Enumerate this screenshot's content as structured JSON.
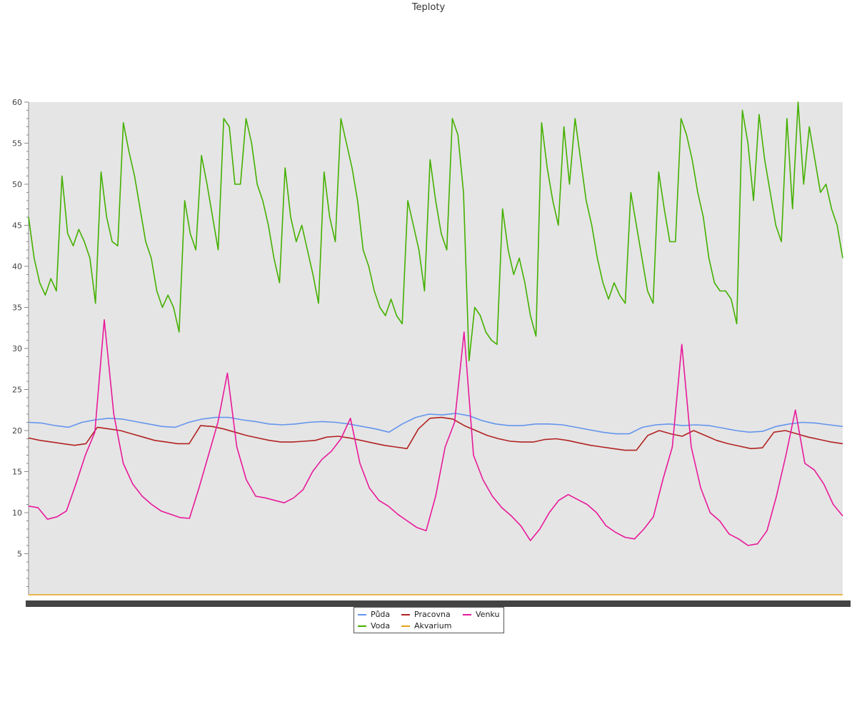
{
  "chart_data": {
    "type": "line",
    "title": "Teploty",
    "ylim": [
      0,
      60
    ],
    "yticks": [
      5,
      10,
      15,
      20,
      25,
      30,
      35,
      40,
      45,
      50,
      55,
      60
    ],
    "grid": false,
    "legend_position": "bottom-center",
    "background": "#e5e5e5",
    "series": [
      {
        "name": "Půda",
        "color": "#6495ed",
        "values": [
          21,
          20.9,
          20.6,
          20.4,
          21,
          21.3,
          21.5,
          21.4,
          21.1,
          20.8,
          20.5,
          20.4,
          21,
          21.4,
          21.6,
          21.6,
          21.3,
          21.1,
          20.8,
          20.7,
          20.8,
          21,
          21.1,
          21,
          20.8,
          20.5,
          20.2,
          19.8,
          20.8,
          21.6,
          22,
          21.9,
          22.1,
          21.8,
          21.2,
          20.8,
          20.6,
          20.6,
          20.8,
          20.8,
          20.7,
          20.4,
          20.1,
          19.8,
          19.6,
          19.6,
          20.4,
          20.7,
          20.8,
          20.6,
          20.7,
          20.6,
          20.3,
          20,
          19.8,
          19.9,
          20.5,
          20.8,
          21,
          20.9,
          20.7,
          20.5
        ]
      },
      {
        "name": "Voda",
        "color": "#44b000",
        "values": [
          46,
          41,
          38,
          36.5,
          38.5,
          37,
          51,
          44,
          42.5,
          44.5,
          43,
          41,
          35.5,
          51.5,
          46,
          43,
          42.5,
          57.5,
          54,
          51,
          47,
          43,
          41,
          37,
          35,
          36.5,
          35,
          32,
          48,
          44,
          42,
          53.5,
          50,
          46,
          42,
          58,
          57,
          50,
          50,
          58,
          55,
          50,
          48,
          45,
          41,
          38,
          52,
          46,
          43,
          45,
          42,
          39,
          35.5,
          51.5,
          46,
          43,
          58,
          55,
          52,
          48,
          42,
          40,
          37,
          35,
          34,
          36,
          34,
          33,
          48,
          45,
          42,
          37,
          53,
          48,
          44,
          42,
          58,
          56,
          49,
          28.5,
          35,
          34,
          32,
          31,
          30.5,
          47,
          42,
          39,
          41,
          38,
          34,
          31.5,
          57.5,
          52,
          48,
          45,
          57,
          50,
          58,
          53,
          48,
          45,
          41,
          38,
          36,
          38,
          36.5,
          35.5,
          49,
          45,
          41,
          37,
          35.5,
          51.5,
          47,
          43,
          43,
          58,
          56,
          53,
          49,
          46,
          41,
          38,
          37,
          37,
          36,
          33,
          59,
          55,
          48,
          58.5,
          53,
          49,
          45,
          43,
          58,
          47,
          60,
          50,
          57,
          53,
          49,
          50,
          47,
          45,
          41
        ]
      },
      {
        "name": "Pracovna",
        "color": "#b22222",
        "values": [
          19.1,
          18.8,
          18.6,
          18.4,
          18.2,
          18.4,
          20.4,
          20.2,
          20,
          19.6,
          19.2,
          18.8,
          18.6,
          18.4,
          18.4,
          20.6,
          20.5,
          20.2,
          19.8,
          19.4,
          19.1,
          18.8,
          18.6,
          18.6,
          18.7,
          18.8,
          19.2,
          19.3,
          19.1,
          18.8,
          18.5,
          18.2,
          18,
          17.8,
          20.2,
          21.5,
          21.6,
          21.4,
          20.6,
          20,
          19.4,
          19,
          18.7,
          18.6,
          18.6,
          18.9,
          19,
          18.8,
          18.5,
          18.2,
          18,
          17.8,
          17.6,
          17.6,
          19.4,
          20,
          19.6,
          19.3,
          20,
          19.4,
          18.8,
          18.4,
          18.1,
          17.8,
          17.9,
          19.8,
          20,
          19.6,
          19.2,
          18.9,
          18.6,
          18.4
        ]
      },
      {
        "name": "Akvarium",
        "color": "#e8a317",
        "values": [
          0,
          0,
          0,
          0,
          0,
          0,
          0,
          0,
          0,
          0
        ]
      },
      {
        "name": "Venku",
        "color": "#e8199a",
        "values": [
          10.8,
          10.6,
          9.2,
          9.5,
          10.2,
          13.5,
          17,
          19.8,
          33.5,
          22,
          16,
          13.5,
          12,
          11,
          10.2,
          9.8,
          9.4,
          9.3,
          13,
          17,
          21,
          27,
          18,
          14,
          12,
          11.8,
          11.5,
          11.2,
          11.8,
          12.8,
          15,
          16.5,
          17.5,
          19,
          21.5,
          16,
          13,
          11.5,
          10.8,
          9.8,
          9,
          8.2,
          7.8,
          12,
          18,
          21,
          32,
          17,
          14,
          12,
          10.6,
          9.6,
          8.4,
          6.6,
          8,
          10,
          11.5,
          12.2,
          11.6,
          11,
          10,
          8.4,
          7.6,
          7,
          6.8,
          8,
          9.5,
          14,
          18,
          30.5,
          18,
          13,
          10,
          9,
          7.4,
          6.8,
          6,
          6.2,
          7.8,
          12,
          17,
          22.5,
          16,
          15.2,
          13.5,
          11,
          9.6
        ]
      }
    ]
  },
  "legend": {
    "items": [
      {
        "label": "Půda",
        "color": "#6495ed"
      },
      {
        "label": "Pracovna",
        "color": "#b22222"
      },
      {
        "label": "Venku",
        "color": "#e8199a"
      },
      {
        "label": "Voda",
        "color": "#44b000"
      },
      {
        "label": "Akvarium",
        "color": "#e8a317"
      }
    ]
  }
}
